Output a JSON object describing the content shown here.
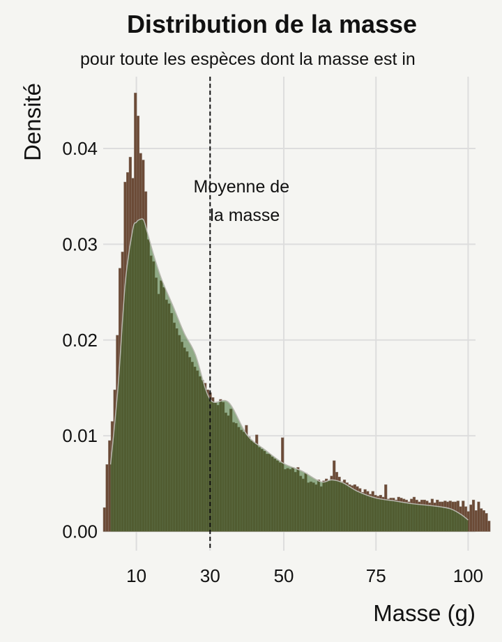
{
  "chart_data": {
    "type": "histogram",
    "title": "Distribution de la masse",
    "subtitle": "pour toute les espèces dont la masse est in",
    "xlabel": "Masse (g)",
    "ylabel": "Densité",
    "xlim": [
      1,
      102
    ],
    "ylim": [
      -0.002,
      0.0475
    ],
    "x_ticks": [
      10,
      30,
      50,
      75,
      100
    ],
    "y_ticks": [
      0.0,
      0.01,
      0.02,
      0.03,
      0.04
    ],
    "y_tick_labels": [
      "0.00",
      "0.01",
      "0.02",
      "0.03",
      "0.04"
    ],
    "grid": true,
    "bin_width": 0.7,
    "histogram": {
      "name": "histogram",
      "color": "#6b4a36",
      "x_start": 1,
      "values": [
        0.0025,
        0.007,
        0.0095,
        0.0115,
        0.0148,
        0.0205,
        0.0275,
        0.0292,
        0.0365,
        0.0375,
        0.0391,
        0.0369,
        0.0458,
        0.0434,
        0.0395,
        0.0388,
        0.0355,
        0.0305,
        0.0288,
        0.0282,
        0.0265,
        0.0248,
        0.0262,
        0.0255,
        0.0242,
        0.0238,
        0.0228,
        0.0218,
        0.0212,
        0.0205,
        0.0198,
        0.0192,
        0.0188,
        0.0182,
        0.0177,
        0.0172,
        0.0168,
        0.0162,
        0.0158,
        0.0155,
        0.0148,
        0.0145,
        0.014,
        0.0135,
        0.0132,
        0.0138,
        0.0135,
        0.0124,
        0.0121,
        0.0128,
        0.0114,
        0.0113,
        0.0109,
        0.0106,
        0.0104,
        0.0111,
        0.0099,
        0.0095,
        0.0093,
        0.0101,
        0.0088,
        0.0086,
        0.0084,
        0.0081,
        0.0081,
        0.0078,
        0.0076,
        0.0074,
        0.0072,
        0.0098,
        0.0065,
        0.0066,
        0.0065,
        0.0067,
        0.0062,
        0.0067,
        0.0058,
        0.0055,
        0.0061,
        0.0051,
        0.0052,
        0.0051,
        0.0049,
        0.0054,
        0.0047,
        0.0053,
        0.0055,
        0.0053,
        0.0058,
        0.0074,
        0.0062,
        0.0057,
        0.0052,
        0.0054,
        0.0051,
        0.0049,
        0.0048,
        0.0049,
        0.0047,
        0.0045,
        0.0041,
        0.0044,
        0.0042,
        0.0039,
        0.0042,
        0.0038,
        0.0037,
        0.0038,
        0.0036,
        0.0049,
        0.0034,
        0.0035,
        0.0035,
        0.0033,
        0.0036,
        0.0035,
        0.0034,
        0.0033,
        0.0031,
        0.0034,
        0.0036,
        0.0033,
        0.0031,
        0.0033,
        0.0033,
        0.0032,
        0.003,
        0.0034,
        0.003,
        0.0033,
        0.0031,
        0.0031,
        0.0032,
        0.0031,
        0.0032,
        0.0031,
        0.0031,
        0.0032,
        0.0026,
        0.0032,
        0.0026,
        0.0021,
        0.0028,
        0.0033,
        0.0022,
        0.0031,
        0.0024,
        0.0022,
        0.0019,
        0.0011
      ]
    },
    "density": {
      "name": "density",
      "color": "#3c6b2e",
      "x": [
        3,
        5,
        7,
        9,
        10,
        11,
        12,
        13,
        15,
        17,
        20,
        23,
        26,
        30,
        35,
        40,
        45,
        50,
        55,
        60,
        63,
        66,
        70,
        75,
        80,
        85,
        90,
        95,
        98,
        100
      ],
      "y": [
        0.007,
        0.015,
        0.026,
        0.0315,
        0.0323,
        0.0326,
        0.0325,
        0.0312,
        0.0285,
        0.0262,
        0.0235,
        0.0207,
        0.0185,
        0.0138,
        0.0135,
        0.0101,
        0.0085,
        0.0071,
        0.0063,
        0.0052,
        0.0054,
        0.0051,
        0.0042,
        0.0035,
        0.0032,
        0.0029,
        0.0027,
        0.0024,
        0.0018,
        0.0012
      ]
    },
    "mean_line": {
      "x": 30,
      "label_line1": "Moyenne de",
      "label_line2": "la masse",
      "style": "dashed"
    }
  }
}
